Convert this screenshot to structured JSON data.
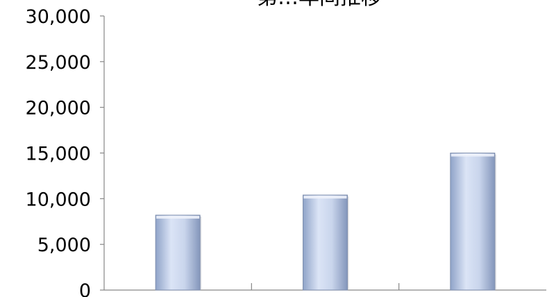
{
  "chart_data": {
    "type": "bar",
    "title": "第…年间推移",
    "categories": [
      "",
      "",
      ""
    ],
    "series": [
      {
        "values": [
          8200,
          10400,
          15000
        ]
      }
    ],
    "ylim": [
      0,
      30000
    ],
    "yticks": [
      0,
      5000,
      10000,
      15000,
      20000,
      25000,
      30000
    ],
    "ytick_labels": [
      "0",
      "5,000",
      "10,000",
      "15,000",
      "20,000",
      "25,000",
      "30,000"
    ],
    "grid": false,
    "legend": "none",
    "bar_color_top": "#dbe4f6",
    "bar_color_bottom": "#8fa3c8",
    "bar_edge_color": "#7f8fae",
    "axis_color": "#868686"
  }
}
